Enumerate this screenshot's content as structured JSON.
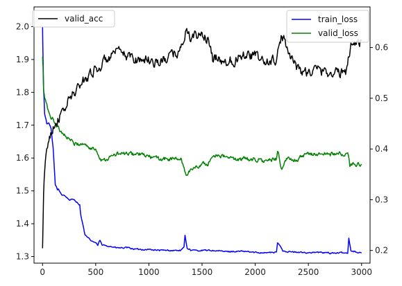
{
  "chart_data": {
    "type": "line",
    "title": "",
    "xlabel": "",
    "ylabel": "",
    "x_range": [
      -80,
      3080
    ],
    "xticks": [
      0,
      500,
      1000,
      1500,
      2000,
      2500,
      3000
    ],
    "left_axis": {
      "range": [
        1.28,
        2.06
      ],
      "ticks": [
        1.3,
        1.4,
        1.5,
        1.6,
        1.7,
        1.8,
        1.9,
        2.0
      ],
      "tick_labels": [
        "1.3",
        "1.4",
        "1.5",
        "1.6",
        "1.7",
        "1.8",
        "1.9",
        "2.0"
      ]
    },
    "right_axis": {
      "range": [
        0.175,
        0.68
      ],
      "ticks": [
        0.2,
        0.3,
        0.4,
        0.5,
        0.6
      ],
      "tick_labels": [
        "0.2",
        "0.3",
        "0.4",
        "0.5",
        "0.6"
      ]
    },
    "legend_left": {
      "placement": "top-left",
      "entries": [
        "valid_acc"
      ]
    },
    "legend_right": {
      "placement": "top-right",
      "entries": [
        "train_loss",
        "valid_loss"
      ]
    },
    "series": [
      {
        "name": "valid_acc",
        "axis": "left",
        "color": "#000000",
        "noise": 0.022,
        "x": [
          0,
          10,
          20,
          40,
          60,
          100,
          150,
          200,
          250,
          300,
          350,
          400,
          450,
          500,
          550,
          600,
          700,
          800,
          900,
          1000,
          1100,
          1200,
          1300,
          1350,
          1400,
          1450,
          1500,
          1550,
          1600,
          1650,
          1700,
          1800,
          1900,
          2000,
          2100,
          2200,
          2250,
          2300,
          2400,
          2500,
          2600,
          2700,
          2800,
          2850,
          2900,
          2950,
          3000
        ],
        "values": [
          1.32,
          1.48,
          1.56,
          1.62,
          1.66,
          1.7,
          1.72,
          1.74,
          1.78,
          1.8,
          1.82,
          1.84,
          1.86,
          1.87,
          1.88,
          1.9,
          1.92,
          1.91,
          1.9,
          1.9,
          1.89,
          1.91,
          1.93,
          1.99,
          1.96,
          1.97,
          1.98,
          1.96,
          1.9,
          1.91,
          1.89,
          1.9,
          1.92,
          1.91,
          1.89,
          1.9,
          1.97,
          1.94,
          1.87,
          1.86,
          1.87,
          1.86,
          1.86,
          1.86,
          1.95,
          1.95,
          1.96
        ]
      },
      {
        "name": "train_loss",
        "axis": "right",
        "color": "#0000ff",
        "noise": 0.002,
        "x": [
          0,
          5,
          10,
          20,
          40,
          60,
          80,
          100,
          120,
          140,
          150,
          180,
          200,
          250,
          300,
          350,
          360,
          380,
          400,
          450,
          500,
          520,
          540,
          560,
          600,
          700,
          800,
          900,
          1000,
          1100,
          1200,
          1300,
          1330,
          1340,
          1360,
          1400,
          1500,
          1600,
          1700,
          1800,
          1900,
          2000,
          2100,
          2200,
          2210,
          2230,
          2260,
          2300,
          2400,
          2500,
          2600,
          2700,
          2800,
          2870,
          2880,
          2900,
          2950,
          3000
        ],
        "values": [
          0.64,
          0.58,
          0.52,
          0.47,
          0.45,
          0.45,
          0.44,
          0.4,
          0.33,
          0.32,
          0.32,
          0.31,
          0.31,
          0.3,
          0.3,
          0.29,
          0.27,
          0.25,
          0.23,
          0.22,
          0.215,
          0.21,
          0.22,
          0.21,
          0.21,
          0.205,
          0.205,
          0.202,
          0.202,
          0.2,
          0.2,
          0.2,
          0.205,
          0.23,
          0.205,
          0.2,
          0.2,
          0.2,
          0.198,
          0.198,
          0.198,
          0.196,
          0.196,
          0.196,
          0.215,
          0.21,
          0.2,
          0.198,
          0.196,
          0.196,
          0.196,
          0.195,
          0.195,
          0.195,
          0.225,
          0.2,
          0.197,
          0.195
        ]
      },
      {
        "name": "valid_loss",
        "axis": "right",
        "color": "#008000",
        "noise": 0.006,
        "x": [
          0,
          5,
          10,
          20,
          40,
          60,
          80,
          100,
          150,
          200,
          250,
          300,
          350,
          400,
          450,
          500,
          550,
          600,
          700,
          800,
          900,
          1000,
          1100,
          1200,
          1300,
          1350,
          1400,
          1500,
          1550,
          1600,
          1650,
          1700,
          1800,
          1900,
          2000,
          2100,
          2200,
          2210,
          2250,
          2300,
          2400,
          2500,
          2600,
          2700,
          2800,
          2870,
          2890,
          2920,
          3000
        ],
        "values": [
          0.58,
          0.56,
          0.51,
          0.5,
          0.49,
          0.47,
          0.46,
          0.46,
          0.44,
          0.43,
          0.42,
          0.41,
          0.41,
          0.41,
          0.4,
          0.4,
          0.38,
          0.38,
          0.39,
          0.39,
          0.39,
          0.385,
          0.38,
          0.38,
          0.38,
          0.35,
          0.36,
          0.37,
          0.37,
          0.385,
          0.39,
          0.385,
          0.38,
          0.38,
          0.38,
          0.375,
          0.38,
          0.4,
          0.36,
          0.38,
          0.38,
          0.39,
          0.39,
          0.39,
          0.39,
          0.39,
          0.365,
          0.37,
          0.37
        ]
      }
    ]
  }
}
